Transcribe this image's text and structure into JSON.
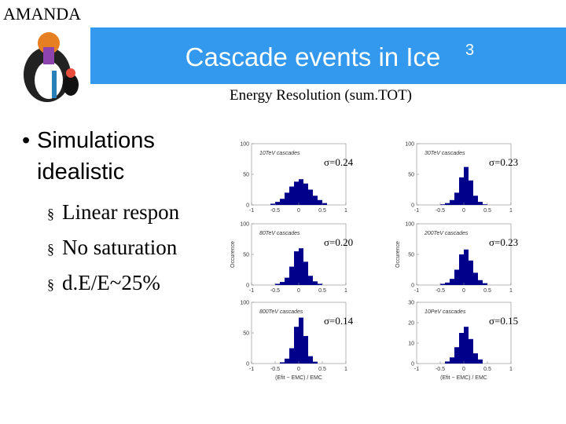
{
  "header": {
    "label": "AMANDA",
    "title": "Cascade events in Ice",
    "title_sup": "3"
  },
  "bullets": {
    "main": [
      "Simulations",
      "idealistic"
    ],
    "sub": [
      "Linear respon",
      "No saturation",
      "d.E/E~25%"
    ]
  },
  "figure_title": "Energy Resolution (sum.TOT)",
  "chart_data": [
    {
      "type": "histogram",
      "title": "10TeV cascades",
      "annotation": "σ=0.24",
      "bins": [
        -0.6,
        -0.5,
        -0.4,
        -0.3,
        -0.2,
        -0.1,
        0,
        0.1,
        0.2,
        0.3,
        0.4,
        0.5,
        0.6
      ],
      "counts": [
        2,
        5,
        10,
        20,
        30,
        38,
        42,
        35,
        25,
        15,
        8,
        3
      ],
      "color": "#00008b",
      "xlim": [
        -1,
        1
      ],
      "ylim": [
        0,
        100
      ],
      "xticks": [
        -1,
        -0.5,
        0,
        0.5,
        1
      ],
      "yticks": [
        0,
        50,
        100
      ]
    },
    {
      "type": "histogram",
      "title": "30TeV cascades",
      "annotation": "σ=0.23",
      "bins": [
        -0.6,
        -0.5,
        -0.4,
        -0.3,
        -0.2,
        -0.1,
        0,
        0.1,
        0.2,
        0.3,
        0.4,
        0.5,
        0.6
      ],
      "counts": [
        0,
        1,
        3,
        8,
        20,
        45,
        62,
        40,
        15,
        5,
        1,
        0
      ],
      "color": "#00008b",
      "xlim": [
        -1,
        1
      ],
      "ylim": [
        0,
        100
      ],
      "xticks": [
        -1,
        -0.5,
        0,
        0.5,
        1
      ],
      "yticks": [
        0,
        50,
        100
      ]
    },
    {
      "type": "histogram",
      "title": "80TeV cascades",
      "annotation": "σ=0.20",
      "ylabel": "Occurence",
      "bins": [
        -0.6,
        -0.5,
        -0.4,
        -0.3,
        -0.2,
        -0.1,
        0,
        0.1,
        0.2,
        0.3,
        0.4,
        0.5,
        0.6
      ],
      "counts": [
        0,
        2,
        5,
        12,
        30,
        55,
        60,
        38,
        15,
        6,
        2,
        0
      ],
      "color": "#00008b",
      "xlim": [
        -1,
        1
      ],
      "ylim": [
        0,
        100
      ],
      "xticks": [
        -1,
        -0.5,
        0,
        0.5,
        1
      ],
      "yticks": [
        0,
        50,
        100
      ]
    },
    {
      "type": "histogram",
      "title": "200TeV cascades",
      "annotation": "σ=0.23",
      "ylabel": "Occurence",
      "bins": [
        -0.6,
        -0.5,
        -0.4,
        -0.3,
        -0.2,
        -0.1,
        0,
        0.1,
        0.2,
        0.3,
        0.4,
        0.5,
        0.6
      ],
      "counts": [
        0,
        2,
        4,
        10,
        25,
        50,
        58,
        40,
        20,
        8,
        3,
        0
      ],
      "color": "#00008b",
      "xlim": [
        -1,
        1
      ],
      "ylim": [
        0,
        100
      ],
      "xticks": [
        -1,
        -0.5,
        0,
        0.5,
        1
      ],
      "yticks": [
        0,
        50,
        100
      ]
    },
    {
      "type": "histogram",
      "title": "800TeV cascades",
      "annotation": "σ=0.14",
      "xlabel": "(Efit − EMC) / EMC",
      "bins": [
        -0.6,
        -0.5,
        -0.4,
        -0.3,
        -0.2,
        -0.1,
        0,
        0.1,
        0.2,
        0.3,
        0.4,
        0.5,
        0.6
      ],
      "counts": [
        0,
        0,
        2,
        8,
        25,
        60,
        75,
        45,
        12,
        3,
        0,
        0
      ],
      "color": "#00008b",
      "xlim": [
        -1,
        1
      ],
      "ylim": [
        0,
        100
      ],
      "xticks": [
        -1,
        -0.5,
        0,
        0.5,
        1
      ],
      "yticks": [
        0,
        50,
        100
      ]
    },
    {
      "type": "histogram",
      "title": "10PeV cascades",
      "annotation": "σ=0.15",
      "xlabel": "(Efit − EMC) / EMC",
      "bins": [
        -0.6,
        -0.5,
        -0.4,
        -0.3,
        -0.2,
        -0.1,
        0,
        0.1,
        0.2,
        0.3,
        0.4,
        0.5,
        0.6
      ],
      "counts": [
        0,
        0,
        1,
        3,
        8,
        15,
        18,
        12,
        5,
        2,
        0,
        0
      ],
      "color": "#00008b",
      "xlim": [
        -1,
        1
      ],
      "ylim": [
        0,
        30
      ],
      "xticks": [
        -1,
        -0.5,
        0,
        0.5,
        1
      ],
      "yticks": [
        0,
        10,
        20,
        30
      ]
    }
  ]
}
